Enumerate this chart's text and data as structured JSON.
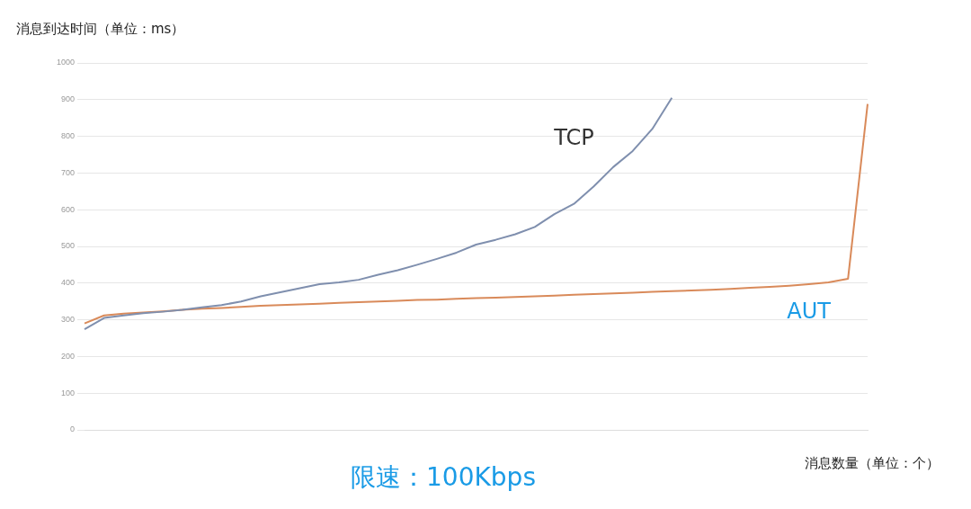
{
  "chart_data": {
    "type": "line",
    "title": "限速：100Kbps",
    "ylabel": "消息到达时间（单位：ms）",
    "xlabel": "消息数量（单位：个）",
    "categories": [
      null,
      null,
      null,
      null,
      null,
      null,
      null,
      null,
      null,
      null,
      null,
      null,
      null,
      null,
      null,
      null,
      null,
      null,
      null,
      null,
      null,
      null,
      null,
      null,
      null,
      null,
      null,
      null,
      null,
      null,
      null,
      null,
      null,
      null,
      null,
      null,
      null,
      null,
      null,
      null,
      null
    ],
    "series": [
      {
        "name": "TCP",
        "color": "#7f8fae",
        "values": [
          274,
          305,
          312,
          318,
          322,
          327,
          334,
          340,
          350,
          364,
          375,
          386,
          397,
          402,
          409,
          423,
          435,
          450,
          466,
          483,
          505,
          518,
          533,
          553,
          588,
          616,
          663,
          716,
          760,
          820,
          905,
          null,
          null,
          null,
          null,
          null,
          null,
          null,
          null,
          null,
          null
        ]
      },
      {
        "name": "AUT",
        "color": "#d98a5a",
        "values": [
          290,
          312,
          317,
          320,
          323,
          327,
          330,
          332,
          335,
          338,
          340,
          342,
          344,
          346,
          348,
          350,
          352,
          354,
          355,
          357,
          359,
          360,
          362,
          364,
          366,
          368,
          370,
          372,
          374,
          376,
          378,
          380,
          382,
          384,
          387,
          390,
          393,
          397,
          402,
          412,
          888
        ]
      }
    ],
    "ylim": [
      0,
      1000
    ],
    "yticks": [
      0,
      100,
      200,
      300,
      400,
      500,
      600,
      700,
      800,
      900,
      1000
    ],
    "grid": "y",
    "legend": false,
    "marker": "none",
    "line_style": "solid"
  }
}
